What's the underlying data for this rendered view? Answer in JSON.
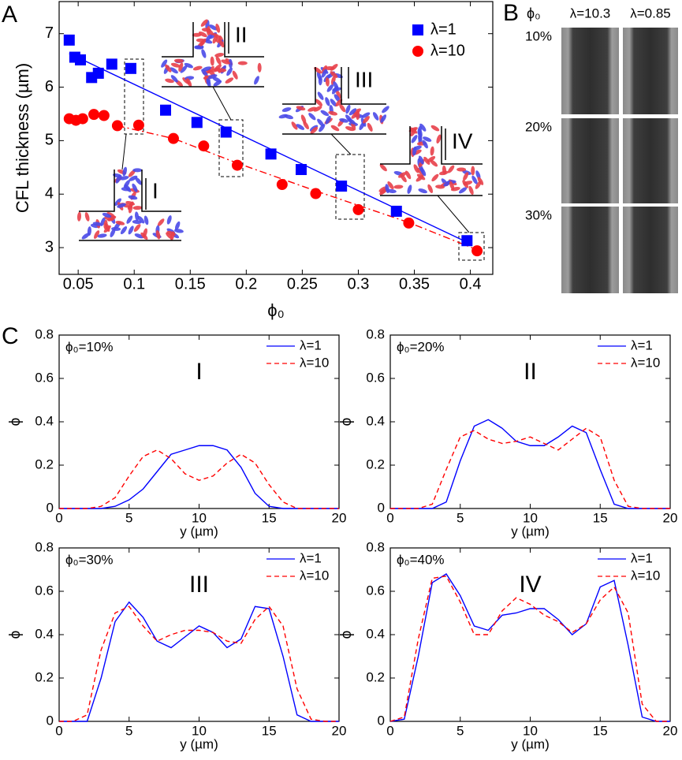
{
  "chart_data": [
    {
      "panel": "A",
      "type": "scatter",
      "xlabel": "ϕ₀",
      "ylabel": "CFL thickness (µm)",
      "xlim": [
        0.033,
        0.42
      ],
      "ylim": [
        2.5,
        7.6
      ],
      "xticks": [
        0.05,
        0.1,
        0.15,
        0.2,
        0.25,
        0.3,
        0.35,
        0.4
      ],
      "yticks": [
        3,
        4,
        5,
        6,
        7
      ],
      "legend": "upper right",
      "series": [
        {
          "name": "λ=1",
          "color": "#0000ff",
          "marker": "square",
          "x": [
            0.042,
            0.047,
            0.052,
            0.062,
            0.068,
            0.08,
            0.097,
            0.128,
            0.156,
            0.182,
            0.222,
            0.249,
            0.285,
            0.334,
            0.397
          ],
          "values": [
            6.88,
            6.56,
            6.51,
            6.18,
            6.26,
            6.43,
            6.35,
            5.57,
            5.34,
            5.16,
            4.75,
            4.46,
            4.15,
            3.68,
            3.13
          ]
        },
        {
          "name": "λ=10",
          "color": "#ff0000",
          "marker": "circle",
          "x": [
            0.042,
            0.048,
            0.054,
            0.064,
            0.073,
            0.085,
            0.104,
            0.135,
            0.162,
            0.192,
            0.232,
            0.262,
            0.3,
            0.345,
            0.406
          ],
          "values": [
            5.41,
            5.38,
            5.41,
            5.49,
            5.47,
            5.28,
            5.29,
            5.04,
            4.9,
            4.54,
            4.18,
            4.01,
            3.71,
            3.46,
            2.94
          ]
        }
      ],
      "fits": [
        {
          "color": "#0000ff",
          "line_style": "solid",
          "x": [
            0.042,
            0.397
          ],
          "values": [
            6.63,
            3.1
          ]
        },
        {
          "color": "#ff0000",
          "line_style": "dashdot",
          "x": [
            0.085,
            0.135,
            0.192,
            0.262,
            0.345,
            0.406
          ],
          "values": [
            5.28,
            5.04,
            4.58,
            4.06,
            3.47,
            2.96
          ]
        }
      ],
      "insets": [
        "I",
        "II",
        "III",
        "IV"
      ]
    },
    {
      "panel": "C",
      "type": "line",
      "annotation": "ϕ₀=10%",
      "label": "I",
      "xlabel": "y (µm)",
      "ylabel": "ϕ",
      "xlim": [
        0,
        20
      ],
      "ylim": [
        0,
        0.8
      ],
      "xticks": [
        0,
        5,
        10,
        15,
        20
      ],
      "yticks": [
        0,
        0.2,
        0.4,
        0.6,
        0.8
      ],
      "legend": "upper right",
      "x": [
        0,
        1,
        2,
        3,
        4,
        5,
        6,
        7,
        8,
        9,
        10,
        11,
        12,
        13,
        14,
        15,
        16,
        17,
        18,
        19,
        20
      ],
      "series": [
        {
          "name": "λ=1",
          "color": "#0000ff",
          "line_style": "solid",
          "values": [
            0,
            0,
            0,
            0,
            0.01,
            0.04,
            0.09,
            0.17,
            0.25,
            0.27,
            0.29,
            0.29,
            0.27,
            0.19,
            0.07,
            0.01,
            0,
            0,
            0,
            0,
            0
          ]
        },
        {
          "name": "λ=10",
          "color": "#ff0000",
          "line_style": "dashed",
          "values": [
            0,
            0,
            0,
            0.01,
            0.05,
            0.15,
            0.24,
            0.27,
            0.23,
            0.16,
            0.13,
            0.15,
            0.21,
            0.25,
            0.21,
            0.11,
            0.03,
            0,
            0,
            0,
            0
          ]
        }
      ]
    },
    {
      "type": "line",
      "annotation": "ϕ₀=20%",
      "label": "II",
      "xlabel": "y (µm)",
      "ylabel": "ϕ",
      "xlim": [
        0,
        20
      ],
      "ylim": [
        0,
        0.8
      ],
      "xticks": [
        0,
        5,
        10,
        15,
        20
      ],
      "yticks": [
        0,
        0.2,
        0.4,
        0.6,
        0.8
      ],
      "legend": "upper right",
      "x": [
        0,
        1,
        2,
        3,
        4,
        5,
        6,
        7,
        8,
        9,
        10,
        11,
        12,
        13,
        14,
        15,
        16,
        17,
        18,
        19,
        20
      ],
      "series": [
        {
          "name": "λ=1",
          "color": "#0000ff",
          "line_style": "solid",
          "values": [
            0,
            0,
            0,
            0,
            0.03,
            0.22,
            0.38,
            0.41,
            0.37,
            0.31,
            0.29,
            0.29,
            0.33,
            0.38,
            0.35,
            0.18,
            0.02,
            0,
            0,
            0,
            0
          ]
        },
        {
          "name": "λ=10",
          "color": "#ff0000",
          "line_style": "dashed",
          "values": [
            0,
            0,
            0,
            0.02,
            0.18,
            0.33,
            0.36,
            0.32,
            0.3,
            0.31,
            0.33,
            0.3,
            0.27,
            0.32,
            0.37,
            0.33,
            0.13,
            0.01,
            0,
            0,
            0
          ]
        }
      ]
    },
    {
      "type": "line",
      "annotation": "ϕ₀=30%",
      "label": "III",
      "xlabel": "y (µm)",
      "ylabel": "ϕ",
      "xlim": [
        0,
        20
      ],
      "ylim": [
        0,
        0.8
      ],
      "xticks": [
        0,
        5,
        10,
        15,
        20
      ],
      "yticks": [
        0,
        0.2,
        0.4,
        0.6,
        0.8
      ],
      "legend": "upper right",
      "x": [
        0,
        1,
        2,
        3,
        4,
        5,
        6,
        7,
        8,
        9,
        10,
        11,
        12,
        13,
        14,
        15,
        16,
        17,
        18,
        19,
        20
      ],
      "series": [
        {
          "name": "λ=1",
          "color": "#0000ff",
          "line_style": "solid",
          "values": [
            0,
            0,
            0,
            0.2,
            0.46,
            0.55,
            0.48,
            0.37,
            0.34,
            0.39,
            0.44,
            0.41,
            0.34,
            0.38,
            0.53,
            0.52,
            0.3,
            0.03,
            0,
            0,
            0
          ]
        },
        {
          "name": "λ=10",
          "color": "#ff0000",
          "line_style": "dashed",
          "values": [
            0,
            0,
            0.03,
            0.33,
            0.5,
            0.53,
            0.44,
            0.37,
            0.4,
            0.42,
            0.42,
            0.41,
            0.37,
            0.36,
            0.47,
            0.53,
            0.44,
            0.15,
            0.01,
            0,
            0
          ]
        }
      ]
    },
    {
      "type": "line",
      "annotation": "ϕ₀=40%",
      "label": "IV",
      "xlabel": "y (µm)",
      "ylabel": "ϕ",
      "xlim": [
        0,
        20
      ],
      "ylim": [
        0,
        0.8
      ],
      "xticks": [
        0,
        5,
        10,
        15,
        20
      ],
      "yticks": [
        0,
        0.2,
        0.4,
        0.6,
        0.8
      ],
      "legend": "upper right",
      "x": [
        0,
        1,
        2,
        3,
        4,
        5,
        6,
        7,
        8,
        9,
        10,
        11,
        12,
        13,
        14,
        15,
        16,
        17,
        18,
        19,
        20
      ],
      "series": [
        {
          "name": "λ=1",
          "color": "#0000ff",
          "line_style": "solid",
          "values": [
            0,
            0.01,
            0.3,
            0.64,
            0.68,
            0.58,
            0.44,
            0.42,
            0.49,
            0.5,
            0.52,
            0.52,
            0.47,
            0.4,
            0.45,
            0.62,
            0.65,
            0.35,
            0.02,
            0,
            0
          ]
        },
        {
          "name": "λ=10",
          "color": "#ff0000",
          "line_style": "dashed",
          "values": [
            0,
            0.02,
            0.38,
            0.66,
            0.67,
            0.55,
            0.4,
            0.4,
            0.51,
            0.57,
            0.54,
            0.49,
            0.46,
            0.41,
            0.45,
            0.56,
            0.62,
            0.5,
            0.08,
            0,
            0
          ]
        }
      ]
    }
  ],
  "panel_b": {
    "panel": "B",
    "corner": "ϕ₀",
    "columns": [
      "λ=10.3",
      "λ=0.85"
    ],
    "rows": [
      "10%",
      "20%",
      "30%"
    ]
  }
}
